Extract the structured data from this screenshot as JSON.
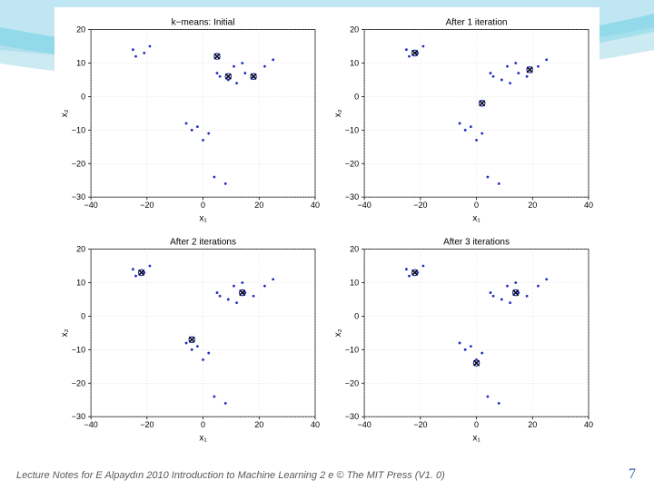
{
  "footer_text": "Lecture Notes for E Alpaydın 2010 Introduction to Machine Learning 2 e © The MIT Press (V1. 0)",
  "page_number": "7",
  "swoosh_colors": [
    "#bfe6f2",
    "#7fd3e6",
    "#a8dce8",
    "#ffffff"
  ],
  "axis": {
    "xlim": [
      -40,
      40
    ],
    "ylim": [
      -30,
      20
    ],
    "xticks": [
      -40,
      -20,
      0,
      20,
      40
    ],
    "yticks": [
      -30,
      -20,
      -10,
      0,
      10,
      20
    ],
    "xlabel": "x₁",
    "ylabel": "x₂",
    "tick_fontsize": 9,
    "label_fontsize": 10,
    "title_fontsize": 10,
    "bg_color": "#ffffff",
    "grid_color": "#c0c0c0",
    "axis_color": "#000000",
    "point_color": "#2030c0",
    "centroid_marker_color": "#000000"
  },
  "cluster_data_points": [
    [
      -25,
      14
    ],
    [
      -24,
      12
    ],
    [
      -21,
      13
    ],
    [
      -19,
      15
    ],
    [
      5,
      7
    ],
    [
      6,
      6
    ],
    [
      9,
      5
    ],
    [
      11,
      9
    ],
    [
      12,
      4
    ],
    [
      15,
      7
    ],
    [
      14,
      10
    ],
    [
      18,
      6
    ],
    [
      22,
      9
    ],
    [
      25,
      11
    ],
    [
      -6,
      -8
    ],
    [
      -4,
      -10
    ],
    [
      -2,
      -9
    ],
    [
      0,
      -13
    ],
    [
      2,
      -11
    ],
    [
      4,
      -24
    ],
    [
      8,
      -26
    ]
  ],
  "panels": [
    {
      "title": "k−means: Initial",
      "centroids": [
        [
          5,
          12
        ],
        [
          9,
          6
        ],
        [
          18,
          6
        ]
      ],
      "assignment": [
        0,
        0,
        0,
        0,
        0,
        0,
        1,
        1,
        1,
        1,
        1,
        2,
        2,
        2,
        1,
        1,
        1,
        1,
        1,
        1,
        2
      ]
    },
    {
      "title": "After 1 iteration",
      "centroids": [
        [
          -22,
          13
        ],
        [
          2,
          -2
        ],
        [
          19,
          8
        ]
      ],
      "assignment": [
        0,
        0,
        0,
        0,
        1,
        1,
        1,
        2,
        1,
        2,
        2,
        2,
        2,
        2,
        1,
        1,
        1,
        1,
        1,
        1,
        1
      ]
    },
    {
      "title": "After 2 iterations",
      "centroids": [
        [
          -22,
          13
        ],
        [
          -4,
          -7
        ],
        [
          14,
          7
        ]
      ],
      "assignment": [
        0,
        0,
        0,
        0,
        2,
        2,
        2,
        2,
        2,
        2,
        2,
        2,
        2,
        2,
        1,
        1,
        1,
        1,
        1,
        1,
        1
      ]
    },
    {
      "title": "After 3 iterations",
      "centroids": [
        [
          -22,
          13
        ],
        [
          0,
          -14
        ],
        [
          14,
          7
        ]
      ],
      "assignment": [
        0,
        0,
        0,
        0,
        2,
        2,
        2,
        2,
        2,
        2,
        2,
        2,
        2,
        2,
        1,
        1,
        1,
        1,
        1,
        1,
        1
      ]
    }
  ]
}
